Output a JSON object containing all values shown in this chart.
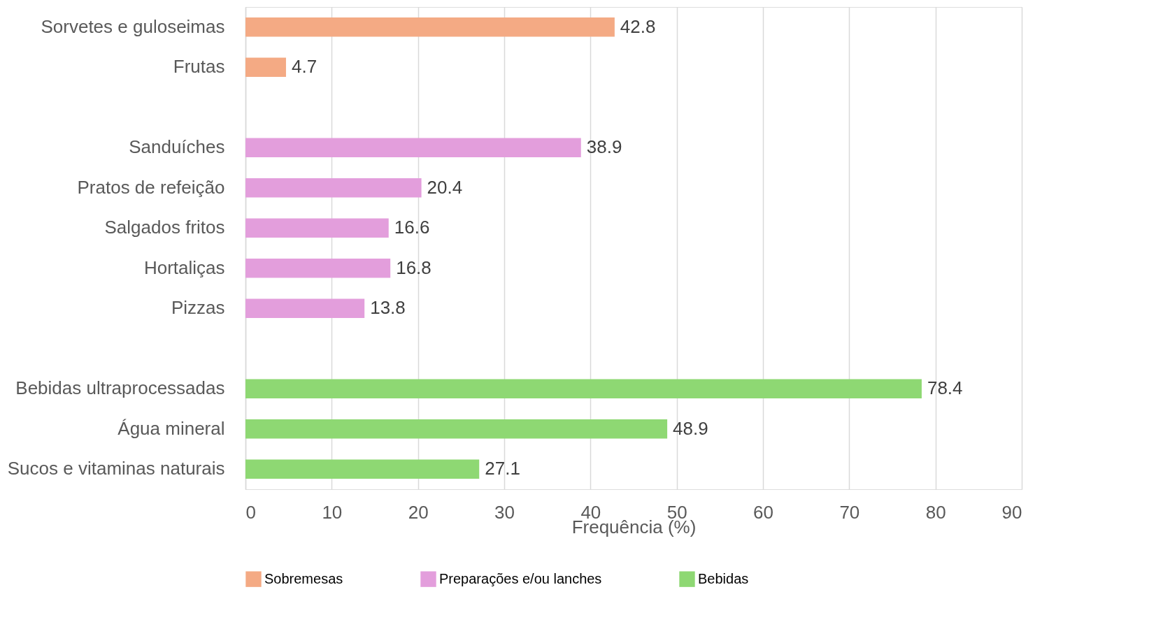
{
  "chart_data": {
    "type": "bar",
    "orientation": "horizontal",
    "xlabel": "Frequência (%)",
    "categories": [
      "Sorvetes e guloseimas",
      "Frutas",
      null,
      "Sanduíches",
      "Pratos de refeição",
      "Salgados fritos",
      "Hortaliças",
      "Pizzas",
      null,
      "Bebidas ultraprocessadas",
      "Água mineral",
      "Sucos e vitaminas naturais"
    ],
    "series": [
      {
        "name": "Sobremesas",
        "color": "#f4aa84",
        "values": [
          42.8,
          4.7,
          null,
          null,
          null,
          null,
          null,
          null,
          null,
          null,
          null,
          null
        ]
      },
      {
        "name": "Preparações e/ou lanches",
        "color": "#e39edc",
        "values": [
          null,
          null,
          null,
          38.9,
          20.4,
          16.6,
          16.8,
          13.8,
          null,
          null,
          null,
          null
        ]
      },
      {
        "name": "Bebidas",
        "color": "#8ed873",
        "values": [
          null,
          null,
          null,
          null,
          null,
          null,
          null,
          null,
          null,
          78.4,
          48.9,
          27.1
        ]
      }
    ],
    "xlim": [
      0,
      90
    ],
    "xticks": [
      0,
      10,
      20,
      30,
      40,
      50,
      60,
      70,
      80,
      90
    ],
    "grid": "x",
    "legend": "bottom",
    "data_labels": true
  }
}
